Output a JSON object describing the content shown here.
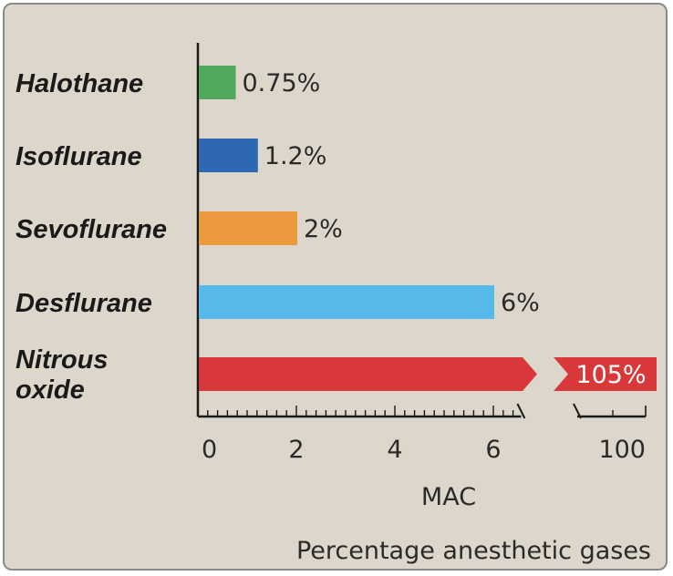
{
  "chart_data": {
    "type": "bar",
    "orientation": "horizontal",
    "categories": [
      "Halothane",
      "Isoflurane",
      "Sevoflurane",
      "Desflurane",
      "Nitrous oxide"
    ],
    "values": [
      0.75,
      1.2,
      2,
      6,
      105
    ],
    "value_labels": [
      "0.75%",
      "1.2%",
      "2%",
      "6%",
      "105%"
    ],
    "colors": [
      "#4fa85b",
      "#2e68b2",
      "#ec9a3e",
      "#56b9ea",
      "#d9383a"
    ],
    "xlabel": "MAC",
    "caption": "Percentage anesthetic gases",
    "x_ticks": [
      "0",
      "2",
      "4",
      "6",
      "100"
    ],
    "xlim": [
      0,
      6.6
    ],
    "axis_break": true,
    "axis_break_segment": [
      95,
      105
    ],
    "grid": false,
    "legend": "none"
  }
}
